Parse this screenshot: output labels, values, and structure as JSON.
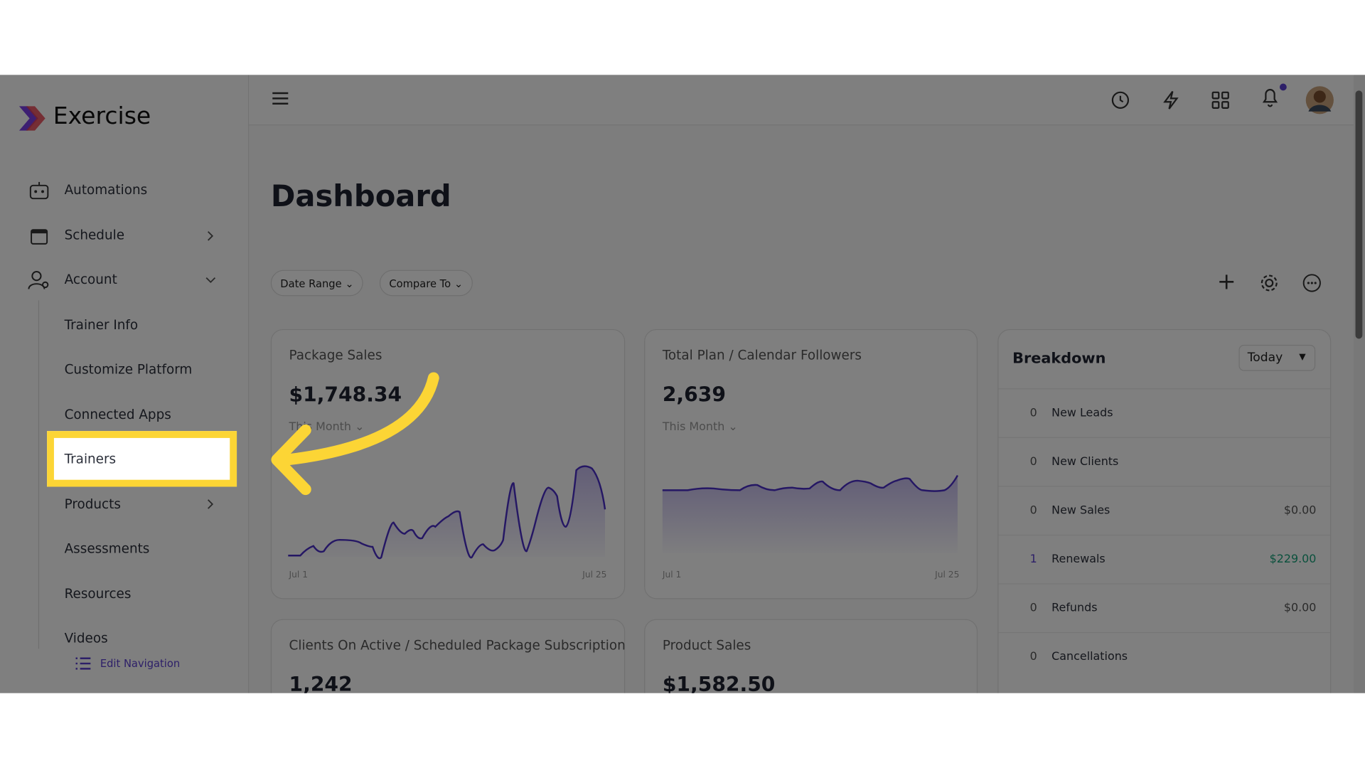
{
  "brand": "Exercise",
  "nav_items": [
    "Automations",
    "Schedule",
    "Account"
  ],
  "account_sub": [
    "Trainer Info",
    "Customize Platform",
    "Connected Apps",
    "Trainers",
    "Products",
    "Assessments",
    "Resources",
    "Videos"
  ],
  "edit_navigation": "Edit Navigation",
  "page_title": "Dashboard",
  "filters": [
    "Date Range",
    "Compare To"
  ],
  "cards": [
    {
      "title": "Package Sales",
      "value": "$1,748.34",
      "period": "This Month",
      "x_start": "Jul 1",
      "x_end": "Jul 25"
    },
    {
      "title": "Total Plan / Calendar Followers",
      "value": "2,639",
      "period": "This Month",
      "x_start": "Jul 1",
      "x_end": "Jul 25"
    },
    {
      "title": "Clients On Active / Scheduled Package Subscription",
      "value": "1,242"
    },
    {
      "title": "Product Sales",
      "value": "$1,582.50"
    }
  ],
  "breakdown": {
    "title": "Breakdown",
    "period": "Today",
    "rows": [
      {
        "count": 0,
        "label": "New Leads"
      },
      {
        "count": 0,
        "label": "New Clients"
      },
      {
        "count": 0,
        "label": "New Sales",
        "amount": "$0.00"
      },
      {
        "count": 1,
        "label": "Renewals",
        "amount": "$229.00"
      },
      {
        "count": 0,
        "label": "Refunds",
        "amount": "$0.00"
      },
      {
        "count": 0,
        "label": "Cancellations"
      }
    ]
  }
}
